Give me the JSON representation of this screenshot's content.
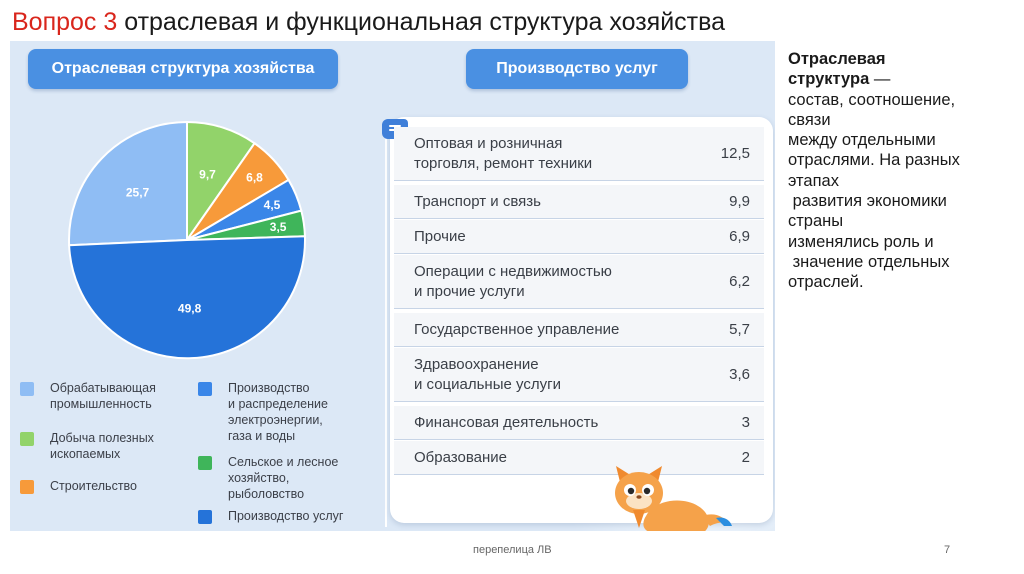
{
  "title": {
    "prefix": "Вопрос 3",
    "rest": " отраслевая и функциональная структура хозяйства"
  },
  "left_pill": "Отраслевая структура хозяйства",
  "right_pill": "Производство услуг",
  "chart_data": {
    "type": "pie",
    "title": "",
    "slices": [
      {
        "name": "Обрабатывающая промышленность",
        "value": 25.7,
        "label": "25,7",
        "color": "#8fbdf4"
      },
      {
        "name": "Добыча полезных ископаемых",
        "value": 9.7,
        "label": "9,7",
        "color": "#92d36a"
      },
      {
        "name": "Строительство",
        "value": 6.8,
        "label": "6,8",
        "color": "#f79a3a"
      },
      {
        "name": "Производство и распределение электроэнергии, газа и воды",
        "value": 4.5,
        "label": "4,5",
        "color": "#3a86e8"
      },
      {
        "name": "Сельское и лесное хозяйство, рыболовство",
        "value": 3.5,
        "label": "3,5",
        "color": "#3fb55a"
      },
      {
        "name": "Производство услуг",
        "value": 49.8,
        "label": "49,8",
        "color": "#2573d9"
      }
    ],
    "legend_placement": "bottom"
  },
  "legend": [
    {
      "lines": [
        "Обрабатывающая",
        "промышленность"
      ],
      "color": "#8fbdf4"
    },
    {
      "lines": [
        "Добыча полезных",
        "ископаемых"
      ],
      "color": "#92d36a"
    },
    {
      "lines": [
        "Строительство"
      ],
      "color": "#f79a3a"
    },
    {
      "lines": [
        "Производство",
        "и распределение",
        "электроэнергии,",
        "газа и воды"
      ],
      "color": "#3a86e8"
    },
    {
      "lines": [
        "Сельское и лесное",
        "хозяйство,",
        "рыболовство"
      ],
      "color": "#3fb55a"
    },
    {
      "lines": [
        "Производство услуг"
      ],
      "color": "#2573d9"
    }
  ],
  "services_table": {
    "rows": [
      {
        "label": [
          "Оптовая и розничная",
          "торговля, ремонт техники"
        ],
        "value": "12,5"
      },
      {
        "label": [
          "Транспорт и связь"
        ],
        "value": "9,9"
      },
      {
        "label": [
          "Прочие"
        ],
        "value": "6,9"
      },
      {
        "label": [
          "Операции с недвижимостью",
          "и прочие услуги"
        ],
        "value": "6,2"
      },
      {
        "label": [
          "Государственное управление"
        ],
        "value": "5,7"
      },
      {
        "label": [
          "Здравоохранение",
          "и социальные услуги"
        ],
        "value": "3,6"
      },
      {
        "label": [
          "Финансовая деятельность"
        ],
        "value": "3"
      },
      {
        "label": [
          "Образование"
        ],
        "value": "2"
      }
    ]
  },
  "side_text": {
    "term_lines": [
      "Отраслевая",
      "структура"
    ],
    "dash": " —",
    "lines": [
      "состав, соотношение,",
      "связи",
      "между отдельными",
      "отраслями. На разных",
      "этапах",
      " развития экономики",
      "страны",
      "изменялись роль и",
      " значение отдельных",
      "отраслей."
    ]
  },
  "footer": {
    "author": "перепелица ЛВ",
    "page": "7"
  }
}
